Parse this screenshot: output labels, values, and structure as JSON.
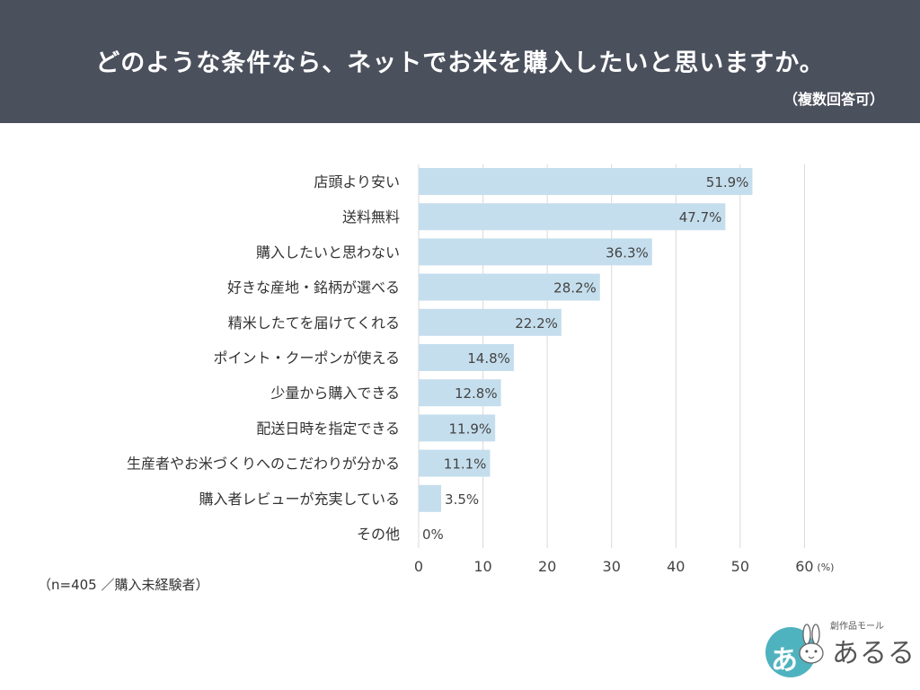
{
  "header": {
    "title": "どのような条件なら、ネットでお米を購入したいと思いますか。",
    "subtitle": "（複数回答可）"
  },
  "note": "（n=405 ／購入未経験者）",
  "logo": {
    "glyph": "あ",
    "small_text": "創作品モール",
    "big_text": "あるる"
  },
  "colors": {
    "header_bg": "#4b505d",
    "bar": "#c5deed",
    "grid": "#d9d9d9",
    "logo_teal": "#4fb3bf"
  },
  "chart_data": {
    "type": "bar",
    "orientation": "horizontal",
    "categories": [
      "店頭より安い",
      "送料無料",
      "購入したいと思わない",
      "好きな産地・銘柄が選べる",
      "精米したてを届けてくれる",
      "ポイント・クーポンが使える",
      "少量から購入できる",
      "配送日時を指定できる",
      "生産者やお米づくりへのこだわりが分かる",
      "購入者レビューが充実している",
      "その他"
    ],
    "values": [
      51.9,
      47.7,
      36.3,
      28.2,
      22.2,
      14.8,
      12.8,
      11.9,
      11.1,
      3.5,
      0
    ],
    "value_labels": [
      "51.9%",
      "47.7%",
      "36.3%",
      "28.2%",
      "22.2%",
      "14.8%",
      "12.8%",
      "11.9%",
      "11.1%",
      "3.5%",
      "0%"
    ],
    "xlim": [
      0,
      60
    ],
    "xticks": [
      "0",
      "10",
      "20",
      "30",
      "40",
      "50",
      "60"
    ],
    "xunit": "(%)",
    "grid": true
  }
}
